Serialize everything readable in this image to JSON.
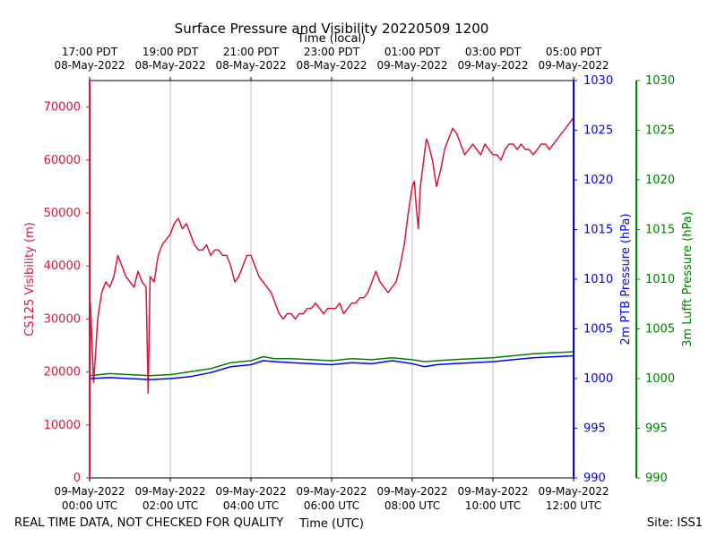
{
  "chart_data": {
    "type": "line",
    "title": "Surface Pressure and Visibility 20220509 1200",
    "xlabel_bottom": "Time (UTC)",
    "xlabel_top": "Time (local)",
    "footer_left": "REAL TIME DATA, NOT CHECKED FOR QUALITY",
    "footer_right": "Site: ISS1",
    "x_range_hours_utc": [
      0,
      12
    ],
    "bottom_ticks": [
      {
        "hour": 0,
        "line1": "09-May-2022",
        "line2": "00:00 UTC"
      },
      {
        "hour": 2,
        "line1": "09-May-2022",
        "line2": "02:00 UTC"
      },
      {
        "hour": 4,
        "line1": "09-May-2022",
        "line2": "04:00 UTC"
      },
      {
        "hour": 6,
        "line1": "09-May-2022",
        "line2": "06:00 UTC"
      },
      {
        "hour": 8,
        "line1": "09-May-2022",
        "line2": "08:00 UTC"
      },
      {
        "hour": 10,
        "line1": "09-May-2022",
        "line2": "10:00 UTC"
      },
      {
        "hour": 12,
        "line1": "09-May-2022",
        "line2": "12:00 UTC"
      }
    ],
    "top_ticks": [
      {
        "hour": 0,
        "line1": "17:00 PDT",
        "line2": "08-May-2022"
      },
      {
        "hour": 2,
        "line1": "19:00 PDT",
        "line2": "08-May-2022"
      },
      {
        "hour": 4,
        "line1": "21:00 PDT",
        "line2": "08-May-2022"
      },
      {
        "hour": 6,
        "line1": "23:00 PDT",
        "line2": "08-May-2022"
      },
      {
        "hour": 8,
        "line1": "01:00 PDT",
        "line2": "09-May-2022"
      },
      {
        "hour": 10,
        "line1": "03:00 PDT",
        "line2": "09-May-2022"
      },
      {
        "hour": 12,
        "line1": "05:00 PDT",
        "line2": "09-May-2022"
      }
    ],
    "grid": "vertical",
    "colors": {
      "visibility": "#dc143c",
      "ptb": "#0000ff",
      "lufft": "#008000"
    },
    "axes": {
      "left": {
        "label": "CS125 Visibility (m)",
        "ylim": [
          0,
          75000
        ],
        "ticks": [
          0,
          10000,
          20000,
          30000,
          40000,
          50000,
          60000,
          70000
        ]
      },
      "right1": {
        "label": "2m PTB Pressure (hPa)",
        "ylim": [
          990,
          1030
        ],
        "ticks": [
          990,
          995,
          1000,
          1005,
          1010,
          1015,
          1020,
          1025,
          1030
        ]
      },
      "right2": {
        "label": "3m Lufft Pressure (hPa)",
        "ylim": [
          990,
          1030
        ],
        "ticks": [
          990,
          995,
          1000,
          1005,
          1010,
          1015,
          1020,
          1025,
          1030
        ]
      }
    },
    "series": [
      {
        "axis": "left",
        "color": "#dc143c",
        "points": [
          [
            0.0,
            0
          ],
          [
            0.02,
            33000
          ],
          [
            0.05,
            27000
          ],
          [
            0.1,
            18000
          ],
          [
            0.15,
            24000
          ],
          [
            0.2,
            30000
          ],
          [
            0.3,
            35000
          ],
          [
            0.4,
            37000
          ],
          [
            0.5,
            36000
          ],
          [
            0.6,
            38000
          ],
          [
            0.7,
            42000
          ],
          [
            0.8,
            40000
          ],
          [
            0.9,
            38000
          ],
          [
            1.0,
            37000
          ],
          [
            1.1,
            36000
          ],
          [
            1.2,
            39000
          ],
          [
            1.3,
            37000
          ],
          [
            1.4,
            36000
          ],
          [
            1.45,
            16000
          ],
          [
            1.5,
            38000
          ],
          [
            1.6,
            37000
          ],
          [
            1.7,
            42000
          ],
          [
            1.8,
            44000
          ],
          [
            1.9,
            45000
          ],
          [
            2.0,
            46000
          ],
          [
            2.1,
            48000
          ],
          [
            2.2,
            49000
          ],
          [
            2.3,
            47000
          ],
          [
            2.4,
            48000
          ],
          [
            2.5,
            46000
          ],
          [
            2.6,
            44000
          ],
          [
            2.7,
            43000
          ],
          [
            2.8,
            43000
          ],
          [
            2.9,
            44000
          ],
          [
            3.0,
            42000
          ],
          [
            3.1,
            43000
          ],
          [
            3.2,
            43000
          ],
          [
            3.3,
            42000
          ],
          [
            3.4,
            42000
          ],
          [
            3.5,
            40000
          ],
          [
            3.6,
            37000
          ],
          [
            3.7,
            38000
          ],
          [
            3.8,
            40000
          ],
          [
            3.9,
            42000
          ],
          [
            4.0,
            42000
          ],
          [
            4.1,
            40000
          ],
          [
            4.2,
            38000
          ],
          [
            4.3,
            37000
          ],
          [
            4.4,
            36000
          ],
          [
            4.5,
            35000
          ],
          [
            4.6,
            33000
          ],
          [
            4.7,
            31000
          ],
          [
            4.8,
            30000
          ],
          [
            4.9,
            31000
          ],
          [
            5.0,
            31000
          ],
          [
            5.1,
            30000
          ],
          [
            5.2,
            31000
          ],
          [
            5.3,
            31000
          ],
          [
            5.4,
            32000
          ],
          [
            5.5,
            32000
          ],
          [
            5.6,
            33000
          ],
          [
            5.7,
            32000
          ],
          [
            5.8,
            31000
          ],
          [
            5.9,
            32000
          ],
          [
            6.0,
            32000
          ],
          [
            6.1,
            32000
          ],
          [
            6.2,
            33000
          ],
          [
            6.3,
            31000
          ],
          [
            6.4,
            32000
          ],
          [
            6.5,
            33000
          ],
          [
            6.6,
            33000
          ],
          [
            6.7,
            34000
          ],
          [
            6.8,
            34000
          ],
          [
            6.9,
            35000
          ],
          [
            7.0,
            37000
          ],
          [
            7.1,
            39000
          ],
          [
            7.2,
            37000
          ],
          [
            7.3,
            36000
          ],
          [
            7.4,
            35000
          ],
          [
            7.5,
            36000
          ],
          [
            7.6,
            37000
          ],
          [
            7.7,
            40000
          ],
          [
            7.8,
            44000
          ],
          [
            7.9,
            50000
          ],
          [
            8.0,
            55000
          ],
          [
            8.05,
            56000
          ],
          [
            8.1,
            51000
          ],
          [
            8.15,
            47000
          ],
          [
            8.2,
            55000
          ],
          [
            8.25,
            58000
          ],
          [
            8.3,
            61000
          ],
          [
            8.35,
            64000
          ],
          [
            8.4,
            63000
          ],
          [
            8.5,
            60000
          ],
          [
            8.6,
            55000
          ],
          [
            8.7,
            58000
          ],
          [
            8.8,
            62000
          ],
          [
            8.9,
            64000
          ],
          [
            9.0,
            66000
          ],
          [
            9.1,
            65000
          ],
          [
            9.2,
            63000
          ],
          [
            9.3,
            61000
          ],
          [
            9.4,
            62000
          ],
          [
            9.5,
            63000
          ],
          [
            9.6,
            62000
          ],
          [
            9.7,
            61000
          ],
          [
            9.8,
            63000
          ],
          [
            9.9,
            62000
          ],
          [
            10.0,
            61000
          ],
          [
            10.1,
            61000
          ],
          [
            10.2,
            60000
          ],
          [
            10.3,
            62000
          ],
          [
            10.4,
            63000
          ],
          [
            10.5,
            63000
          ],
          [
            10.6,
            62000
          ],
          [
            10.7,
            63000
          ],
          [
            10.8,
            62000
          ],
          [
            10.9,
            62000
          ],
          [
            11.0,
            61000
          ],
          [
            11.1,
            62000
          ],
          [
            11.2,
            63000
          ],
          [
            11.3,
            63000
          ],
          [
            11.4,
            62000
          ],
          [
            11.5,
            63000
          ],
          [
            11.6,
            64000
          ],
          [
            11.7,
            65000
          ],
          [
            11.8,
            66000
          ],
          [
            11.9,
            67000
          ],
          [
            12.0,
            68000
          ]
        ]
      },
      {
        "axis": "right1",
        "color": "#0000ff",
        "points": [
          [
            0.0,
            1000.0
          ],
          [
            0.5,
            1000.1
          ],
          [
            1.0,
            1000.0
          ],
          [
            1.5,
            999.9
          ],
          [
            2.0,
            1000.0
          ],
          [
            2.5,
            1000.2
          ],
          [
            3.0,
            1000.6
          ],
          [
            3.5,
            1001.2
          ],
          [
            4.0,
            1001.4
          ],
          [
            4.3,
            1001.8
          ],
          [
            4.6,
            1001.7
          ],
          [
            5.0,
            1001.6
          ],
          [
            5.5,
            1001.5
          ],
          [
            6.0,
            1001.4
          ],
          [
            6.5,
            1001.6
          ],
          [
            7.0,
            1001.5
          ],
          [
            7.5,
            1001.8
          ],
          [
            8.0,
            1001.5
          ],
          [
            8.3,
            1001.2
          ],
          [
            8.6,
            1001.4
          ],
          [
            9.0,
            1001.5
          ],
          [
            9.5,
            1001.6
          ],
          [
            10.0,
            1001.7
          ],
          [
            10.5,
            1001.9
          ],
          [
            11.0,
            1002.1
          ],
          [
            11.5,
            1002.2
          ],
          [
            12.0,
            1002.3
          ]
        ]
      },
      {
        "axis": "right2",
        "color": "#008000",
        "points": [
          [
            0.0,
            1000.3
          ],
          [
            0.5,
            1000.5
          ],
          [
            1.0,
            1000.4
          ],
          [
            1.5,
            1000.3
          ],
          [
            2.0,
            1000.4
          ],
          [
            2.5,
            1000.7
          ],
          [
            3.0,
            1001.0
          ],
          [
            3.5,
            1001.6
          ],
          [
            4.0,
            1001.8
          ],
          [
            4.3,
            1002.2
          ],
          [
            4.6,
            1002.0
          ],
          [
            5.0,
            1002.0
          ],
          [
            5.5,
            1001.9
          ],
          [
            6.0,
            1001.8
          ],
          [
            6.5,
            1002.0
          ],
          [
            7.0,
            1001.9
          ],
          [
            7.5,
            1002.1
          ],
          [
            8.0,
            1001.9
          ],
          [
            8.3,
            1001.7
          ],
          [
            8.6,
            1001.8
          ],
          [
            9.0,
            1001.9
          ],
          [
            9.5,
            1002.0
          ],
          [
            10.0,
            1002.1
          ],
          [
            10.5,
            1002.3
          ],
          [
            11.0,
            1002.5
          ],
          [
            11.5,
            1002.6
          ],
          [
            12.0,
            1002.7
          ]
        ]
      }
    ]
  }
}
